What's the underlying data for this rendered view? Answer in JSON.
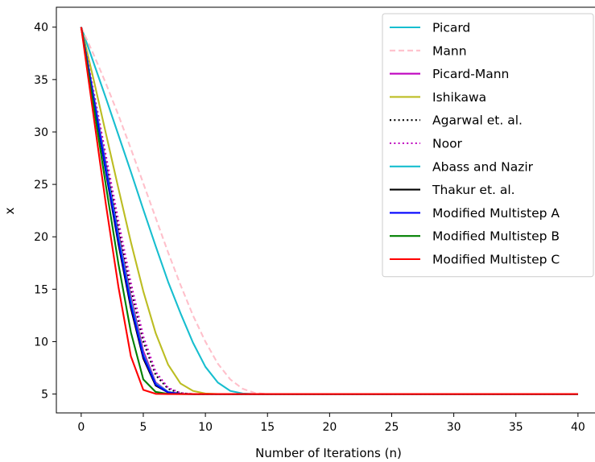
{
  "chart_data": {
    "type": "line",
    "xlabel": "Number of Iterations (n)",
    "ylabel": "x",
    "xlim": [
      -2,
      41.5
    ],
    "ylim": [
      3.2,
      41.9
    ],
    "xticks": [
      "0",
      "5",
      "10",
      "15",
      "20",
      "25",
      "30",
      "35",
      "40"
    ],
    "yticks": [
      "5",
      "10",
      "15",
      "20",
      "25",
      "30",
      "35",
      "40"
    ],
    "legend_position": "top-right",
    "x": [
      0,
      1,
      2,
      3,
      4,
      5,
      6,
      7,
      8,
      9,
      10,
      11,
      12,
      13,
      14,
      15,
      16,
      17,
      18,
      19,
      20,
      21,
      22,
      23,
      24,
      25,
      26,
      27,
      28,
      29,
      30,
      31,
      32,
      33,
      34,
      35,
      36,
      37,
      38,
      39,
      40
    ],
    "series": [
      {
        "name": "Picard",
        "color": "#17becf",
        "dash": "solid",
        "values": [
          40,
          36.6,
          33.2,
          29.7,
          26.2,
          22.6,
          19.1,
          15.7,
          12.7,
          9.9,
          7.6,
          6.1,
          5.3,
          5.05,
          5,
          5,
          5,
          5,
          5,
          5,
          5,
          5,
          5,
          5,
          5,
          5,
          5,
          5,
          5,
          5,
          5,
          5,
          5,
          5,
          5,
          5,
          5,
          5,
          5,
          5,
          5
        ]
      },
      {
        "name": "Mann",
        "color": "#ffc0cb",
        "dash": "dashed",
        "values": [
          40,
          37.4,
          34.6,
          31.6,
          28.4,
          25.1,
          21.8,
          18.5,
          15.4,
          12.5,
          10,
          7.9,
          6.4,
          5.5,
          5.1,
          5,
          5,
          5,
          5,
          5,
          5,
          5,
          5,
          5,
          5,
          5,
          5,
          5,
          5,
          5,
          5,
          5,
          5,
          5,
          5,
          5,
          5,
          5,
          5,
          5,
          5
        ]
      },
      {
        "name": "Picard-Mann",
        "color": "#bf00bf",
        "dash": "solid",
        "values": [
          40,
          33.5,
          26.9,
          20.4,
          14.3,
          9.1,
          6.1,
          5.2,
          5.02,
          5,
          5,
          5,
          5,
          5,
          5,
          5,
          5,
          5,
          5,
          5,
          5,
          5,
          5,
          5,
          5,
          5,
          5,
          5,
          5,
          5,
          5,
          5,
          5,
          5,
          5,
          5,
          5,
          5,
          5,
          5,
          5
        ]
      },
      {
        "name": "Ishikawa",
        "color": "#bcbd22",
        "dash": "solid",
        "values": [
          40,
          35,
          29.8,
          24.6,
          19.5,
          14.8,
          10.8,
          7.8,
          6,
          5.3,
          5.05,
          5,
          5,
          5,
          5,
          5,
          5,
          5,
          5,
          5,
          5,
          5,
          5,
          5,
          5,
          5,
          5,
          5,
          5,
          5,
          5,
          5,
          5,
          5,
          5,
          5,
          5,
          5,
          5,
          5,
          5
        ]
      },
      {
        "name": "Agarwal et. al.",
        "color": "#000000",
        "dash": "dotted",
        "values": [
          40,
          33.7,
          27.3,
          21,
          15.1,
          10,
          6.8,
          5.5,
          5.08,
          5,
          5,
          5,
          5,
          5,
          5,
          5,
          5,
          5,
          5,
          5,
          5,
          5,
          5,
          5,
          5,
          5,
          5,
          5,
          5,
          5,
          5,
          5,
          5,
          5,
          5,
          5,
          5,
          5,
          5,
          5,
          5
        ]
      },
      {
        "name": "Noor",
        "color": "#bf00bf",
        "dash": "dotted",
        "values": [
          40,
          33.9,
          27.7,
          21.5,
          15.6,
          10.5,
          7.1,
          5.6,
          5.1,
          5,
          5,
          5,
          5,
          5,
          5,
          5,
          5,
          5,
          5,
          5,
          5,
          5,
          5,
          5,
          5,
          5,
          5,
          5,
          5,
          5,
          5,
          5,
          5,
          5,
          5,
          5,
          5,
          5,
          5,
          5,
          5
        ]
      },
      {
        "name": "Abass and Nazir",
        "color": "#17becf",
        "dash": "solid",
        "values": [
          40,
          33.4,
          26.6,
          20,
          13.9,
          8.8,
          6,
          5.2,
          5.02,
          5,
          5,
          5,
          5,
          5,
          5,
          5,
          5,
          5,
          5,
          5,
          5,
          5,
          5,
          5,
          5,
          5,
          5,
          5,
          5,
          5,
          5,
          5,
          5,
          5,
          5,
          5,
          5,
          5,
          5,
          5,
          5
        ]
      },
      {
        "name": "Thakur et. al.",
        "color": "#000000",
        "dash": "solid",
        "values": [
          40,
          33.1,
          26.1,
          19.3,
          13.2,
          8.4,
          5.8,
          5.15,
          5.01,
          5,
          5,
          5,
          5,
          5,
          5,
          5,
          5,
          5,
          5,
          5,
          5,
          5,
          5,
          5,
          5,
          5,
          5,
          5,
          5,
          5,
          5,
          5,
          5,
          5,
          5,
          5,
          5,
          5,
          5,
          5,
          5
        ]
      },
      {
        "name": "Modified Multistep A",
        "color": "#0000ff",
        "dash": "solid",
        "values": [
          40,
          33.2,
          26.3,
          19.6,
          13.5,
          8.6,
          5.9,
          5.15,
          5.01,
          5,
          5,
          5,
          5,
          5,
          5,
          5,
          5,
          5,
          5,
          5,
          5,
          5,
          5,
          5,
          5,
          5,
          5,
          5,
          5,
          5,
          5,
          5,
          5,
          5,
          5,
          5,
          5,
          5,
          5,
          5,
          5
        ]
      },
      {
        "name": "Modified Multistep B",
        "color": "#008000",
        "dash": "solid",
        "values": [
          40,
          32.5,
          24.8,
          17.4,
          10.9,
          6.4,
          5.2,
          5.02,
          5,
          5,
          5,
          5,
          5,
          5,
          5,
          5,
          5,
          5,
          5,
          5,
          5,
          5,
          5,
          5,
          5,
          5,
          5,
          5,
          5,
          5,
          5,
          5,
          5,
          5,
          5,
          5,
          5,
          5,
          5,
          5,
          5
        ]
      },
      {
        "name": "Modified Multistep C",
        "color": "#ff0000",
        "dash": "solid",
        "values": [
          40,
          31.5,
          23,
          15.2,
          8.6,
          5.4,
          5.02,
          5,
          5,
          5,
          5,
          5,
          5,
          5,
          5,
          5,
          5,
          5,
          5,
          5,
          5,
          5,
          5,
          5,
          5,
          5,
          5,
          5,
          5,
          5,
          5,
          5,
          5,
          5,
          5,
          5,
          5,
          5,
          5,
          5,
          5
        ]
      }
    ]
  }
}
